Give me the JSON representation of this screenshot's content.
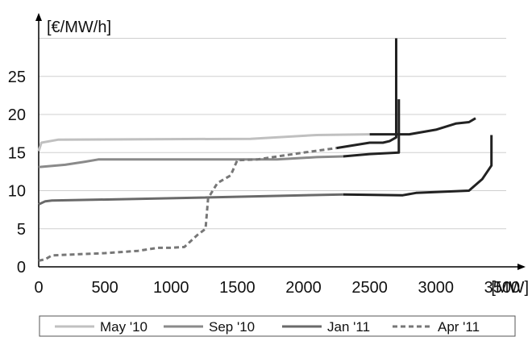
{
  "chart_data": {
    "type": "line",
    "title": "",
    "xlabel": "[MW]",
    "ylabel": "[€/MW/h]",
    "xlim": [
      0,
      3700
    ],
    "ylim": [
      0,
      30
    ],
    "x_ticks": [
      0,
      500,
      1000,
      1500,
      2000,
      2500,
      3000,
      3500
    ],
    "y_ticks": [
      0,
      5,
      10,
      15,
      20,
      25
    ],
    "grid": "horizontal",
    "legend_position": "bottom",
    "series": [
      {
        "name": "May '10",
        "color": "#c0c0c0",
        "dash": "solid",
        "points": [
          [
            0,
            15.2
          ],
          [
            20,
            16.3
          ],
          [
            150,
            16.7
          ],
          [
            1600,
            16.8
          ],
          [
            2100,
            17.3
          ],
          [
            2500,
            17.4
          ]
        ],
        "tail_color": "#222222",
        "tail_points": [
          [
            2500,
            17.4
          ],
          [
            2800,
            17.4
          ],
          [
            3000,
            18.0
          ],
          [
            3150,
            18.8
          ],
          [
            3250,
            19.0
          ],
          [
            3300,
            19.5
          ]
        ]
      },
      {
        "name": "Sep '10",
        "color": "#8a8a8a",
        "dash": "solid",
        "points": [
          [
            0,
            13.1
          ],
          [
            200,
            13.4
          ],
          [
            350,
            13.8
          ],
          [
            450,
            14.1
          ],
          [
            1800,
            14.1
          ],
          [
            2100,
            14.4
          ],
          [
            2300,
            14.5
          ]
        ],
        "tail_color": "#222222",
        "tail_points": [
          [
            2300,
            14.5
          ],
          [
            2500,
            14.8
          ],
          [
            2720,
            15.0
          ],
          [
            2720,
            22.0
          ]
        ]
      },
      {
        "name": "Jan '11",
        "color": "#6a6a6a",
        "dash": "solid",
        "points": [
          [
            0,
            8.2
          ],
          [
            50,
            8.6
          ],
          [
            100,
            8.7
          ],
          [
            1000,
            9.0
          ],
          [
            2300,
            9.5
          ]
        ],
        "tail_color": "#222222",
        "tail_points": [
          [
            2300,
            9.5
          ],
          [
            2750,
            9.4
          ],
          [
            2850,
            9.7
          ],
          [
            3250,
            10.0
          ],
          [
            3350,
            11.5
          ],
          [
            3420,
            13.3
          ],
          [
            3420,
            17.3
          ]
        ]
      },
      {
        "name": "Apr '11",
        "color": "#777777",
        "dash": "dashed",
        "points": [
          [
            0,
            0.8
          ],
          [
            50,
            1.0
          ],
          [
            100,
            1.5
          ],
          [
            500,
            1.8
          ],
          [
            750,
            2.1
          ],
          [
            900,
            2.5
          ],
          [
            1000,
            2.5
          ],
          [
            1100,
            2.6
          ],
          [
            1200,
            4.2
          ],
          [
            1260,
            5.0
          ],
          [
            1280,
            9.0
          ],
          [
            1350,
            11.0
          ],
          [
            1450,
            12.0
          ],
          [
            1500,
            14.0
          ],
          [
            1650,
            14.1
          ],
          [
            2000,
            15.0
          ],
          [
            2250,
            15.6
          ]
        ],
        "tail_color": "#222222",
        "tail_points": [
          [
            2250,
            15.6
          ],
          [
            2500,
            16.3
          ],
          [
            2600,
            16.3
          ],
          [
            2650,
            16.5
          ],
          [
            2700,
            17.0
          ],
          [
            2700,
            30.0
          ]
        ]
      }
    ]
  }
}
